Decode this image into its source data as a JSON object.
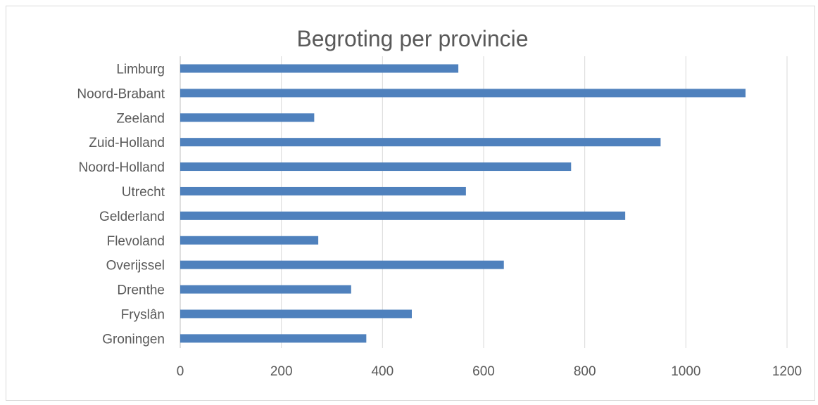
{
  "chart_data": {
    "type": "bar",
    "orientation": "horizontal",
    "title": "Begroting per provincie",
    "xlabel": "",
    "ylabel": "",
    "xlim": [
      0,
      1200
    ],
    "x_ticks": [
      0,
      200,
      400,
      600,
      800,
      1000,
      1200
    ],
    "grid": true,
    "legend": "none",
    "bar_color": "#4f81bd",
    "categories": [
      "Limburg",
      "Noord-Brabant",
      "Zeeland",
      "Zuid-Holland",
      "Noord-Holland",
      "Utrecht",
      "Gelderland",
      "Flevoland",
      "Overijssel",
      "Drenthe",
      "Fryslân",
      "Groningen"
    ],
    "values": [
      550,
      1118,
      265,
      950,
      773,
      565,
      880,
      273,
      640,
      338,
      458,
      368
    ]
  }
}
